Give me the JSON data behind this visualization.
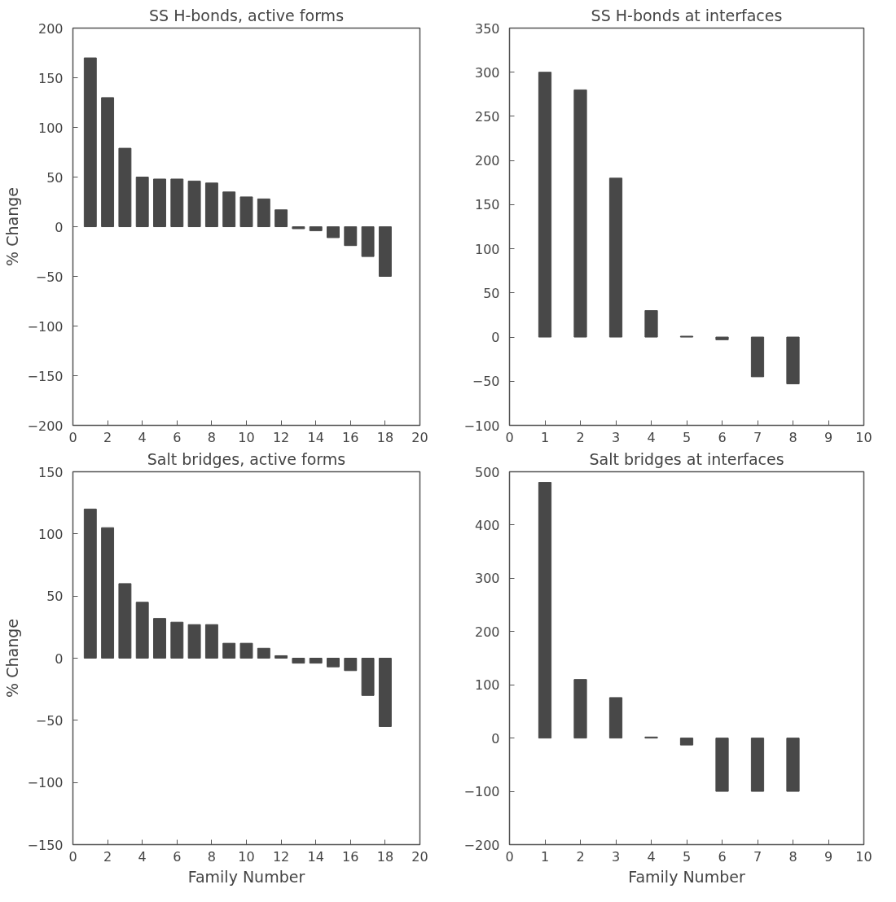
{
  "chart_data": [
    {
      "type": "bar",
      "title": "SS H-bonds, active forms",
      "ylabel": "% Change",
      "color": "#484848",
      "x": [
        1,
        2,
        3,
        4,
        5,
        6,
        7,
        8,
        9,
        10,
        11,
        12,
        13,
        14,
        15,
        16,
        17,
        18
      ],
      "values": [
        170,
        130,
        79,
        50,
        48,
        48,
        46,
        44,
        35,
        30,
        28,
        17,
        -2,
        -4,
        -11,
        -19,
        -30,
        -50
      ],
      "xlim": [
        0,
        20
      ],
      "xticks": [
        0,
        2,
        4,
        6,
        8,
        10,
        12,
        14,
        16,
        18,
        20
      ],
      "ylim": [
        -200,
        200
      ],
      "yticks": [
        -200,
        -150,
        -100,
        -50,
        0,
        50,
        100,
        150,
        200
      ]
    },
    {
      "type": "bar",
      "title": "SS H-bonds at interfaces",
      "color": "#484848",
      "x": [
        1,
        2,
        3,
        4,
        5,
        6,
        7,
        8
      ],
      "values": [
        300,
        280,
        180,
        30,
        1,
        -3,
        -45,
        -53
      ],
      "xlim": [
        0,
        10
      ],
      "xticks": [
        0,
        1,
        2,
        3,
        4,
        5,
        6,
        7,
        8,
        9,
        10
      ],
      "ylim": [
        -100,
        350
      ],
      "yticks": [
        -100,
        -50,
        0,
        50,
        100,
        150,
        200,
        250,
        300,
        350
      ]
    },
    {
      "type": "bar",
      "title": "Salt bridges, active forms",
      "ylabel": "% Change",
      "xlabel": "Family Number",
      "color": "#484848",
      "x": [
        1,
        2,
        3,
        4,
        5,
        6,
        7,
        8,
        9,
        10,
        11,
        12,
        13,
        14,
        15,
        16,
        17,
        18
      ],
      "values": [
        120,
        105,
        60,
        45,
        32,
        29,
        27,
        27,
        12,
        12,
        8,
        2,
        -4,
        -4,
        -7,
        -10,
        -30,
        -55
      ],
      "xlim": [
        0,
        20
      ],
      "xticks": [
        0,
        2,
        4,
        6,
        8,
        10,
        12,
        14,
        16,
        18,
        20
      ],
      "ylim": [
        -150,
        150
      ],
      "yticks": [
        -150,
        -100,
        -50,
        0,
        50,
        100,
        150
      ]
    },
    {
      "type": "bar",
      "title": "Salt bridges at interfaces",
      "xlabel": "Family Number",
      "color": "#484848",
      "x": [
        1,
        2,
        3,
        4,
        5,
        6,
        7,
        8
      ],
      "values": [
        480,
        110,
        76,
        2,
        -13,
        -100,
        -100,
        -100
      ],
      "xlim": [
        0,
        10
      ],
      "xticks": [
        0,
        1,
        2,
        3,
        4,
        5,
        6,
        7,
        8,
        9,
        10
      ],
      "ylim": [
        -200,
        500
      ],
      "yticks": [
        -200,
        -100,
        0,
        100,
        200,
        300,
        400,
        500
      ]
    }
  ]
}
